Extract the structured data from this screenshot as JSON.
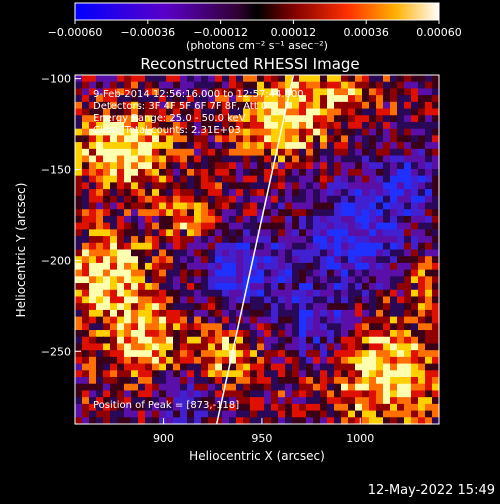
{
  "chart_data": {
    "type": "heatmap",
    "title": "Reconstructed RHESSI Image",
    "xlabel": "Heliocentric X (arcsec)",
    "ylabel": "Heliocentric Y (arcsec)",
    "xlim": [
      855,
      1040
    ],
    "ylim": [
      -290,
      -98
    ],
    "xticks": [
      900,
      950,
      1000
    ],
    "yticks": [
      -100,
      -150,
      -200,
      -250
    ],
    "xtick_labels": [
      "900",
      "950",
      "1000"
    ],
    "ytick_labels": [
      "−100",
      "−150",
      "−200",
      "−250"
    ],
    "colorbar": {
      "range": [
        -0.0006,
        0.0006
      ],
      "ticks": [
        -0.0006,
        -0.00036,
        -0.00012,
        0.00012,
        0.00036,
        0.0006
      ],
      "tick_labels": [
        "−0.00060",
        "−0.00036",
        "−0.00012",
        "0.00012",
        "0.00036",
        "0.00060"
      ],
      "unit_label": "(photons cm⁻² s⁻¹ asec⁻²)"
    },
    "annotations": [
      "9-Feb-2014 12:56:16.000 to 12:57:44.000",
      "Detectors: 3F 4F 5F 6F 7F 8F, Att 0",
      "Energy Range: 25.0 - 50.0 keV",
      "Clean    Total counts: 2.31E+03",
      "Position of Peak = [873,-118]"
    ],
    "limb_line": [
      [
        927,
        -290
      ],
      [
        966,
        -98
      ]
    ],
    "grid": false
  },
  "footer": {
    "timestamp": "12-May-2022 15:49"
  }
}
